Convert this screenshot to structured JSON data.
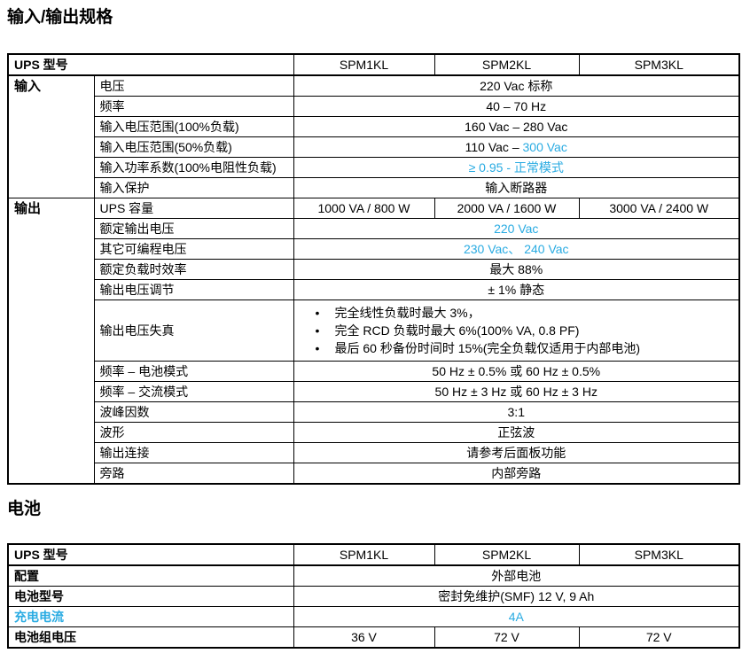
{
  "titles": {
    "io": "输入/输出规格",
    "battery": "电池"
  },
  "colors": {
    "accent": "#29ABE2",
    "border": "#000000"
  },
  "io_table": {
    "header_label": "UPS 型号",
    "models": [
      "SPM1KL",
      "SPM2KL",
      "SPM3KL"
    ],
    "sections": [
      {
        "name": "输入",
        "rows": [
          {
            "label": "电压",
            "value": "220 Vac  标称"
          },
          {
            "label": "频率",
            "value": "40 – 70 Hz"
          },
          {
            "label": "输入电压范围(100%负载)",
            "value": "160 Vac – 280 Vac"
          },
          {
            "label": "输入电压范围(50%负载)",
            "parts": [
              {
                "text": "110 Vac – "
              },
              {
                "text": "300 Vac",
                "accent": true
              }
            ]
          },
          {
            "label": "输入功率系数(100%电阻性负载)",
            "value": "≥ 0.95 -  正常模式",
            "accent": true
          },
          {
            "label": "输入保护",
            "value": "输入断路器"
          }
        ]
      },
      {
        "name": "输出",
        "rows": [
          {
            "label": "UPS 容量",
            "values": [
              "1000 VA / 800 W",
              "2000 VA / 1600 W",
              "3000 VA / 2400 W"
            ]
          },
          {
            "label": "额定输出电压",
            "value": "220 Vac",
            "accent": true
          },
          {
            "label": "其它可编程电压",
            "value": "230 Vac、 240 Vac",
            "accent": true
          },
          {
            "label": "额定负载时效率",
            "value": "最大 88%"
          },
          {
            "label": "输出电压调节",
            "value": "± 1%  静态"
          },
          {
            "label": "输出电压失真",
            "bullets": [
              "完全线性负载时最大 3%，",
              "完全 RCD 负载时最大 6%(100% VA, 0.8 PF)",
              "最后 60 秒备份时间时 15%(完全负载仅适用于内部电池)"
            ]
          },
          {
            "label": "频率 – 电池模式",
            "value": "50 Hz ± 0.5%  或  60 Hz ± 0.5%"
          },
          {
            "label": "频率 – 交流模式",
            "value": "50 Hz ± 3 Hz  或  60 Hz ± 3 Hz"
          },
          {
            "label": "波峰因数",
            "value": "3:1"
          },
          {
            "label": "波形",
            "value": "正弦波"
          },
          {
            "label": "输出连接",
            "value": "请参考后面板功能"
          },
          {
            "label": "旁路",
            "value": "内部旁路"
          }
        ]
      }
    ]
  },
  "battery_table": {
    "header_label": "UPS 型号",
    "models": [
      "SPM1KL",
      "SPM2KL",
      "SPM3KL"
    ],
    "rows": [
      {
        "label": "配置",
        "value": "外部电池"
      },
      {
        "label": "电池型号",
        "value": "密封免维护(SMF) 12 V, 9 Ah"
      },
      {
        "label": "充电电流",
        "label_accent": true,
        "value": "4A",
        "accent": true
      },
      {
        "label": "电池组电压",
        "values": [
          "36 V",
          "72 V",
          "72 V"
        ]
      }
    ]
  }
}
